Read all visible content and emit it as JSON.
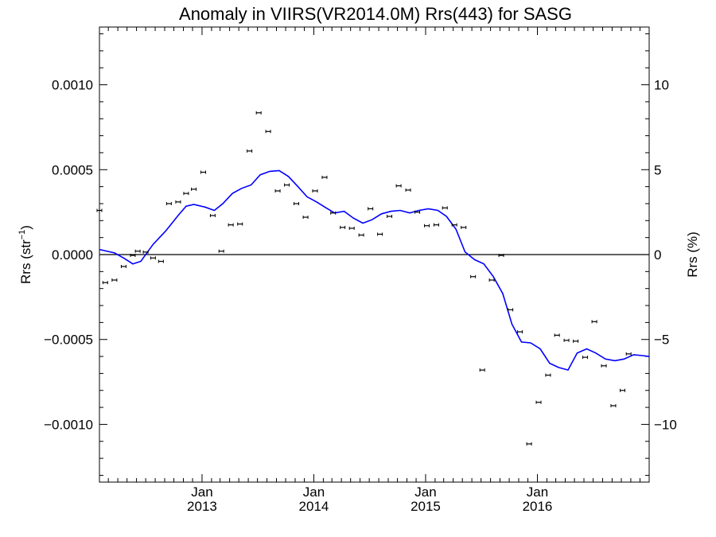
{
  "chart_data": {
    "type": "line",
    "title": "Anomaly in VIIRS(VR2014.0M) Rrs(443) for SASG",
    "ylabel_left": "Rrs (str",
    "ylabel_left_sup": "−1",
    "ylabel_left_close": ")",
    "ylabel_right": "Rrs (%)",
    "x_range": [
      "2012-02-01",
      "2016-12-31"
    ],
    "ylim_left": [
      -0.00134,
      0.00134
    ],
    "ylim_right": [
      -13.4,
      13.4
    ],
    "yticks_left": [
      {
        "value": 0.001,
        "label": "0.0010"
      },
      {
        "value": 0.0005,
        "label": "0.0005"
      },
      {
        "value": 0.0,
        "label": "0.0000"
      },
      {
        "value": -0.0005,
        "label": "−0.0005"
      },
      {
        "value": -0.001,
        "label": "−0.0010"
      }
    ],
    "yticks_right": [
      {
        "value": 10,
        "label": "10"
      },
      {
        "value": 5,
        "label": "5"
      },
      {
        "value": 0,
        "label": "0"
      },
      {
        "value": -5,
        "label": "−5"
      },
      {
        "value": -10,
        "label": "−10"
      }
    ],
    "xticks": [
      {
        "date": "2013-01-01",
        "month": "Jan",
        "year": "2013"
      },
      {
        "date": "2014-01-01",
        "month": "Jan",
        "year": "2014"
      },
      {
        "date": "2015-01-01",
        "month": "Jan",
        "year": "2015"
      },
      {
        "date": "2016-01-01",
        "month": "Jan",
        "year": "2016"
      }
    ],
    "zero_line": true,
    "grid": false,
    "series": [
      {
        "kind": "points_with_errorbars",
        "color": "#000000",
        "points": [
          {
            "date": "2012-02-01",
            "y": 0.00026
          },
          {
            "date": "2012-02-20",
            "y": -0.000165
          },
          {
            "date": "2012-03-21",
            "y": -0.00015
          },
          {
            "date": "2012-04-20",
            "y": -7e-05
          },
          {
            "date": "2012-05-20",
            "y": -5e-06
          },
          {
            "date": "2012-06-05",
            "y": 2e-05
          },
          {
            "date": "2012-07-01",
            "y": 1.5e-05
          },
          {
            "date": "2012-07-25",
            "y": -2e-05
          },
          {
            "date": "2012-08-20",
            "y": -4e-05
          },
          {
            "date": "2012-09-15",
            "y": 0.0003
          },
          {
            "date": "2012-10-15",
            "y": 0.00031
          },
          {
            "date": "2012-11-10",
            "y": 0.00036
          },
          {
            "date": "2012-12-05",
            "y": 0.000385
          },
          {
            "date": "2013-01-05",
            "y": 0.000485
          },
          {
            "date": "2013-02-05",
            "y": 0.00023
          },
          {
            "date": "2013-03-05",
            "y": 2e-05
          },
          {
            "date": "2013-04-05",
            "y": 0.000175
          },
          {
            "date": "2013-05-05",
            "y": 0.00018
          },
          {
            "date": "2013-06-05",
            "y": 0.00061
          },
          {
            "date": "2013-07-05",
            "y": 0.000835
          },
          {
            "date": "2013-08-05",
            "y": 0.000725
          },
          {
            "date": "2013-09-05",
            "y": 0.000375
          },
          {
            "date": "2013-10-05",
            "y": 0.00041
          },
          {
            "date": "2013-11-05",
            "y": 0.0003
          },
          {
            "date": "2013-12-05",
            "y": 0.00022
          },
          {
            "date": "2014-01-05",
            "y": 0.000375
          },
          {
            "date": "2014-02-05",
            "y": 0.000455
          },
          {
            "date": "2014-03-05",
            "y": 0.000245
          },
          {
            "date": "2014-04-05",
            "y": 0.00016
          },
          {
            "date": "2014-05-05",
            "y": 0.000155
          },
          {
            "date": "2014-06-05",
            "y": 0.000115
          },
          {
            "date": "2014-07-05",
            "y": 0.00027
          },
          {
            "date": "2014-08-05",
            "y": 0.00012
          },
          {
            "date": "2014-09-05",
            "y": 0.000225
          },
          {
            "date": "2014-10-05",
            "y": 0.000405
          },
          {
            "date": "2014-11-05",
            "y": 0.00038
          },
          {
            "date": "2014-12-05",
            "y": 0.00025
          },
          {
            "date": "2015-01-05",
            "y": 0.00017
          },
          {
            "date": "2015-02-05",
            "y": 0.000175
          },
          {
            "date": "2015-03-05",
            "y": 0.000275
          },
          {
            "date": "2015-04-05",
            "y": 0.000175
          },
          {
            "date": "2015-05-05",
            "y": 0.00016
          },
          {
            "date": "2015-06-05",
            "y": -0.00013
          },
          {
            "date": "2015-07-05",
            "y": -0.00068
          },
          {
            "date": "2015-08-05",
            "y": -0.00015
          },
          {
            "date": "2015-09-05",
            "y": -5e-06
          },
          {
            "date": "2015-10-05",
            "y": -0.000325
          },
          {
            "date": "2015-11-05",
            "y": -0.000455
          },
          {
            "date": "2015-12-05",
            "y": -0.001115
          },
          {
            "date": "2016-01-05",
            "y": -0.00087
          },
          {
            "date": "2016-02-05",
            "y": -0.00071
          },
          {
            "date": "2016-03-05",
            "y": -0.000475
          },
          {
            "date": "2016-04-05",
            "y": -0.000505
          },
          {
            "date": "2016-05-05",
            "y": -0.00051
          },
          {
            "date": "2016-06-05",
            "y": -0.000605
          },
          {
            "date": "2016-07-05",
            "y": -0.000395
          },
          {
            "date": "2016-08-05",
            "y": -0.000655
          },
          {
            "date": "2016-09-05",
            "y": -0.00089
          },
          {
            "date": "2016-10-05",
            "y": -0.0008
          },
          {
            "date": "2016-10-25",
            "y": -0.000585
          }
        ]
      },
      {
        "kind": "line",
        "color": "#0000ff",
        "points": [
          {
            "date": "2012-02-01",
            "y": 3e-05
          },
          {
            "date": "2012-03-21",
            "y": 1e-05
          },
          {
            "date": "2012-04-20",
            "y": -2e-05
          },
          {
            "date": "2012-05-20",
            "y": -5.5e-05
          },
          {
            "date": "2012-06-15",
            "y": -4e-05
          },
          {
            "date": "2012-07-25",
            "y": 6e-05
          },
          {
            "date": "2012-09-05",
            "y": 0.00014
          },
          {
            "date": "2012-10-15",
            "y": 0.00023
          },
          {
            "date": "2012-11-10",
            "y": 0.000285
          },
          {
            "date": "2012-12-05",
            "y": 0.000295
          },
          {
            "date": "2013-01-10",
            "y": 0.00028
          },
          {
            "date": "2013-02-10",
            "y": 0.00026
          },
          {
            "date": "2013-03-10",
            "y": 0.0003
          },
          {
            "date": "2013-04-10",
            "y": 0.00036
          },
          {
            "date": "2013-05-10",
            "y": 0.00039
          },
          {
            "date": "2013-06-10",
            "y": 0.00041
          },
          {
            "date": "2013-07-10",
            "y": 0.00047
          },
          {
            "date": "2013-08-10",
            "y": 0.00049
          },
          {
            "date": "2013-09-10",
            "y": 0.000495
          },
          {
            "date": "2013-10-10",
            "y": 0.00046
          },
          {
            "date": "2013-11-10",
            "y": 0.0004
          },
          {
            "date": "2013-12-10",
            "y": 0.00034
          },
          {
            "date": "2014-01-10",
            "y": 0.00031
          },
          {
            "date": "2014-02-10",
            "y": 0.000275
          },
          {
            "date": "2014-03-10",
            "y": 0.000245
          },
          {
            "date": "2014-04-10",
            "y": 0.000255
          },
          {
            "date": "2014-05-10",
            "y": 0.000215
          },
          {
            "date": "2014-06-10",
            "y": 0.000185
          },
          {
            "date": "2014-07-10",
            "y": 0.000205
          },
          {
            "date": "2014-08-10",
            "y": 0.00024
          },
          {
            "date": "2014-09-10",
            "y": 0.000255
          },
          {
            "date": "2014-10-10",
            "y": 0.00026
          },
          {
            "date": "2014-11-10",
            "y": 0.000245
          },
          {
            "date": "2014-12-10",
            "y": 0.00026
          },
          {
            "date": "2015-01-10",
            "y": 0.00027
          },
          {
            "date": "2015-02-10",
            "y": 0.00026
          },
          {
            "date": "2015-03-10",
            "y": 0.000225
          },
          {
            "date": "2015-04-10",
            "y": 0.00015
          },
          {
            "date": "2015-05-10",
            "y": 1.5e-05
          },
          {
            "date": "2015-06-10",
            "y": -3e-05
          },
          {
            "date": "2015-07-10",
            "y": -5.5e-05
          },
          {
            "date": "2015-08-10",
            "y": -0.00013
          },
          {
            "date": "2015-09-10",
            "y": -0.00023
          },
          {
            "date": "2015-10-10",
            "y": -0.00041
          },
          {
            "date": "2015-11-10",
            "y": -0.000515
          },
          {
            "date": "2015-12-10",
            "y": -0.00052
          },
          {
            "date": "2016-01-10",
            "y": -0.000555
          },
          {
            "date": "2016-02-10",
            "y": -0.00064
          },
          {
            "date": "2016-03-10",
            "y": -0.000665
          },
          {
            "date": "2016-04-10",
            "y": -0.00068
          },
          {
            "date": "2016-05-10",
            "y": -0.00058
          },
          {
            "date": "2016-06-10",
            "y": -0.000555
          },
          {
            "date": "2016-07-10",
            "y": -0.00058
          },
          {
            "date": "2016-08-10",
            "y": -0.000615
          },
          {
            "date": "2016-09-10",
            "y": -0.000625
          },
          {
            "date": "2016-10-10",
            "y": -0.000615
          },
          {
            "date": "2016-11-10",
            "y": -0.00059
          },
          {
            "date": "2016-12-10",
            "y": -0.000595
          },
          {
            "date": "2016-12-31",
            "y": -0.0006
          }
        ]
      }
    ]
  }
}
